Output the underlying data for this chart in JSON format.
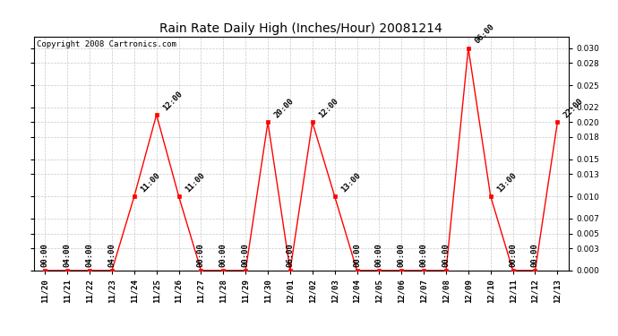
{
  "title": "Rain Rate Daily High (Inches/Hour) 20081214",
  "copyright": "Copyright 2008 Cartronics.com",
  "background_color": "#ffffff",
  "plot_background": "#ffffff",
  "grid_color": "#c8c8c8",
  "line_color": "#ff0000",
  "marker_color": "#ff0000",
  "ylim": [
    0.0,
    0.0315
  ],
  "yticks": [
    0.0,
    0.003,
    0.005,
    0.007,
    0.01,
    0.013,
    0.015,
    0.018,
    0.02,
    0.022,
    0.025,
    0.028,
    0.03
  ],
  "data_points": [
    {
      "date": "11/20",
      "value": 0.0,
      "label": "00:00",
      "label_rot": 90
    },
    {
      "date": "11/21",
      "value": 0.0,
      "label": "04:00",
      "label_rot": 90
    },
    {
      "date": "11/22",
      "value": 0.0,
      "label": "04:00",
      "label_rot": 90
    },
    {
      "date": "11/23",
      "value": 0.0,
      "label": "04:00",
      "label_rot": 90
    },
    {
      "date": "11/24",
      "value": 0.01,
      "label": "11:00",
      "label_rot": 45
    },
    {
      "date": "11/25",
      "value": 0.021,
      "label": "12:00",
      "label_rot": 45
    },
    {
      "date": "11/26",
      "value": 0.01,
      "label": "11:00",
      "label_rot": 45
    },
    {
      "date": "11/27",
      "value": 0.0,
      "label": "00:00",
      "label_rot": 90
    },
    {
      "date": "11/28",
      "value": 0.0,
      "label": "00:00",
      "label_rot": 90
    },
    {
      "date": "11/29",
      "value": 0.0,
      "label": "00:00",
      "label_rot": 90
    },
    {
      "date": "11/30",
      "value": 0.02,
      "label": "20:00",
      "label_rot": 45
    },
    {
      "date": "12/01",
      "value": 0.0,
      "label": "06:00",
      "label_rot": 90
    },
    {
      "date": "12/02",
      "value": 0.02,
      "label": "12:00",
      "label_rot": 45
    },
    {
      "date": "12/03",
      "value": 0.01,
      "label": "13:00",
      "label_rot": 45
    },
    {
      "date": "12/04",
      "value": 0.0,
      "label": "00:00",
      "label_rot": 90
    },
    {
      "date": "12/05",
      "value": 0.0,
      "label": "00:00",
      "label_rot": 90
    },
    {
      "date": "12/06",
      "value": 0.0,
      "label": "00:00",
      "label_rot": 90
    },
    {
      "date": "12/07",
      "value": 0.0,
      "label": "00:00",
      "label_rot": 90
    },
    {
      "date": "12/08",
      "value": 0.0,
      "label": "00:00",
      "label_rot": 90
    },
    {
      "date": "12/09",
      "value": 0.03,
      "label": "06:00",
      "label_rot": 45
    },
    {
      "date": "12/10",
      "value": 0.01,
      "label": "13:00",
      "label_rot": 45
    },
    {
      "date": "12/11",
      "value": 0.0,
      "label": "00:00",
      "label_rot": 90
    },
    {
      "date": "12/12",
      "value": 0.0,
      "label": "00:00",
      "label_rot": 90
    },
    {
      "date": "12/13",
      "value": 0.02,
      "label": "22:00",
      "label_rot": 45
    }
  ],
  "title_fontsize": 10,
  "copyright_fontsize": 6.5,
  "annotation_fontsize": 6.5,
  "tick_fontsize": 6.5
}
